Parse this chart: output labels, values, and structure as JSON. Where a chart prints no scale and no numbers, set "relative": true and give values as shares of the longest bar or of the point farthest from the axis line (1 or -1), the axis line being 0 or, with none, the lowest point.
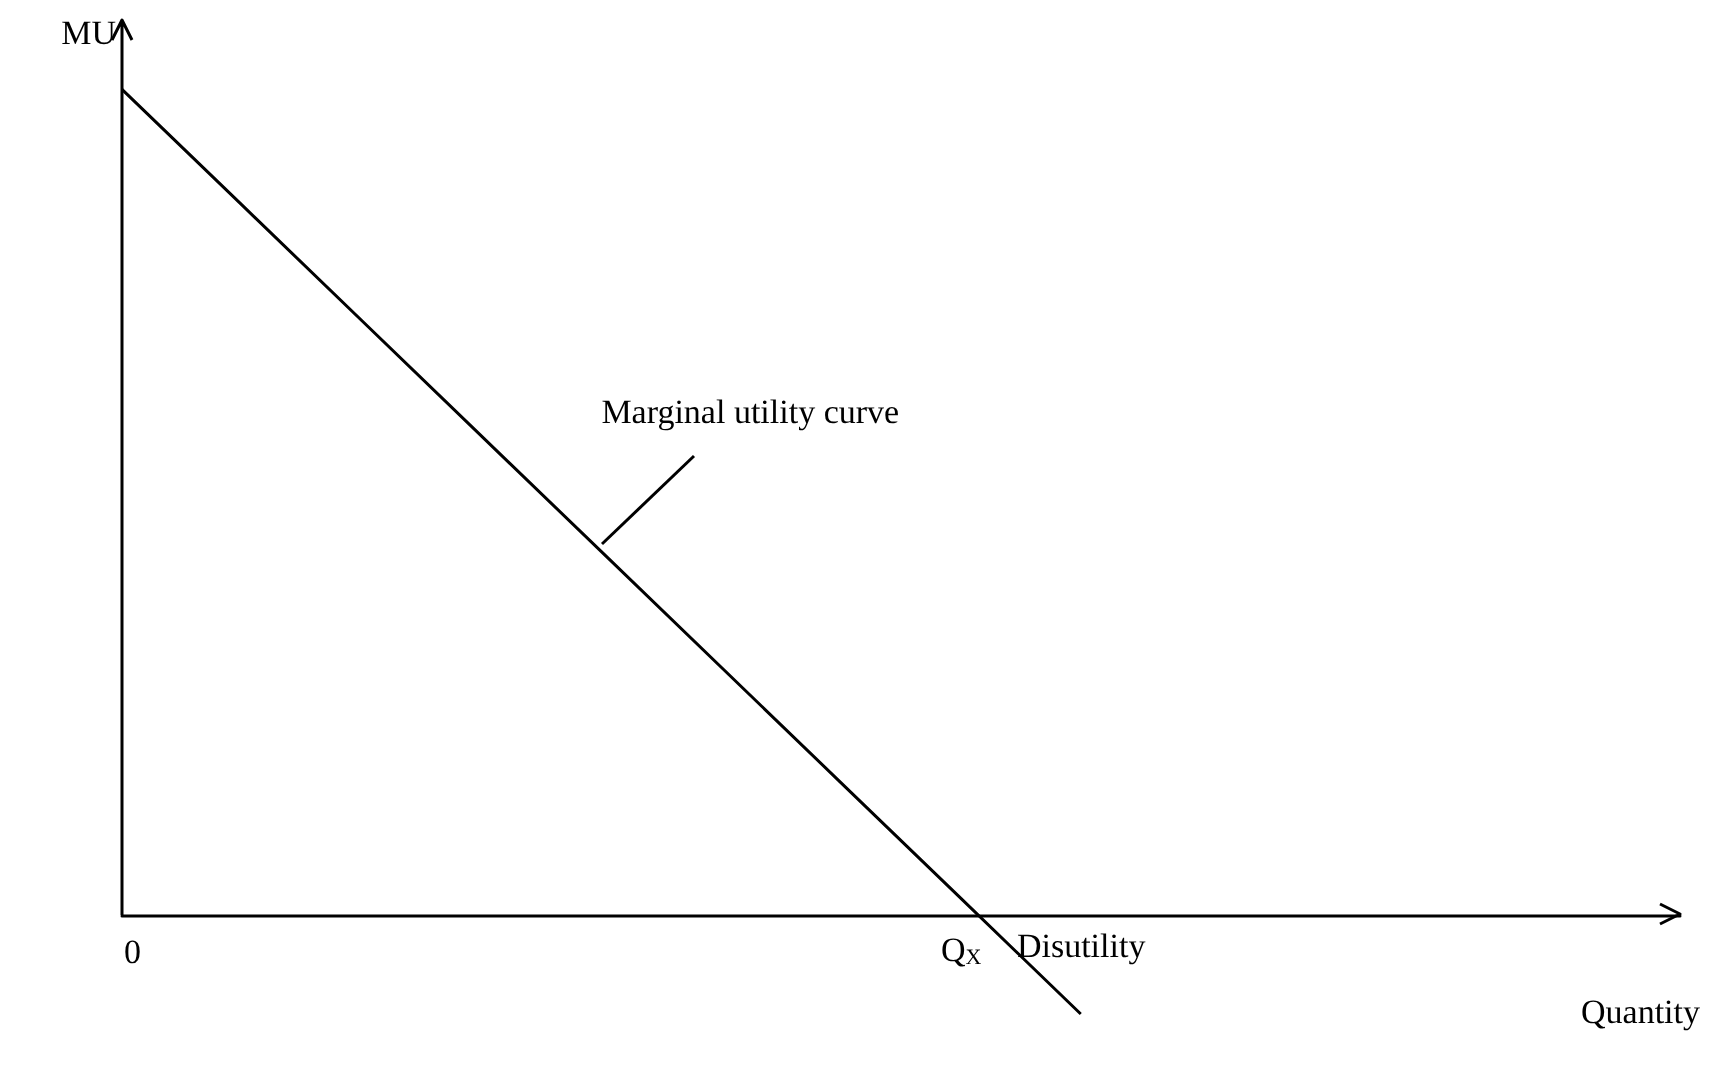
{
  "chart_data": {
    "type": "line",
    "relative": true,
    "xlabel": "Quantity",
    "ylabel": "MU",
    "categories": [
      null,
      null,
      null,
      null,
      null,
      null,
      null,
      null,
      null,
      null,
      null,
      null,
      null,
      null
    ],
    "series": [
      {
        "color": "#000000",
        "values": [
          1,
          0.86,
          0.72,
          0.58,
          0.44,
          0.3,
          0.16,
          0.02,
          -0.12,
          null,
          null,
          null,
          null,
          null
        ]
      }
    ],
    "annotations": [
      "0",
      "Q$_{X}$",
      "Disutility",
      "Marginal utility curve"
    ],
    "marker": "none",
    "line_style": "solid",
    "grid": false
  }
}
